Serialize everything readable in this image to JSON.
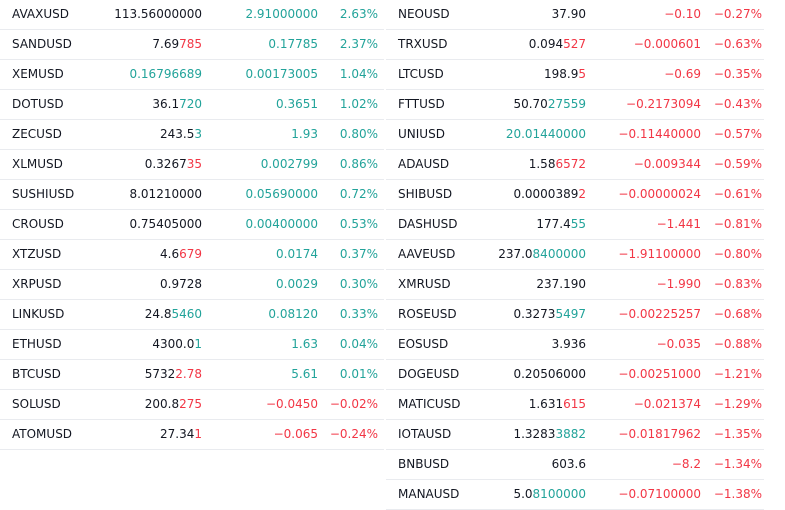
{
  "colors": {
    "up": "#22a39a",
    "down": "#f23645",
    "text": "#131722",
    "divider": "#e9ebef"
  },
  "left_rows": [
    {
      "symbol": "AVAXUSD",
      "price": "113.56000000",
      "price_base": "113.56000000",
      "price_tail": "",
      "price_dir": "neutral",
      "tail_dir": "",
      "change": "2.91000000",
      "pct": "2.63%",
      "dir": "up"
    },
    {
      "symbol": "SANDUSD",
      "price": "7.69785",
      "price_base": "7.69",
      "price_tail": "785",
      "price_dir": "neutral",
      "tail_dir": "down",
      "change": "0.17785",
      "pct": "2.37%",
      "dir": "up"
    },
    {
      "symbol": "XEMUSD",
      "price": "0.16796689",
      "price_base": "0.16796689",
      "price_tail": "",
      "price_dir": "up",
      "tail_dir": "",
      "change": "0.00173005",
      "pct": "1.04%",
      "dir": "up"
    },
    {
      "symbol": "DOTUSD",
      "price": "36.1720",
      "price_base": "36.1",
      "price_tail": "720",
      "price_dir": "neutral",
      "tail_dir": "up",
      "change": "0.3651",
      "pct": "1.02%",
      "dir": "up"
    },
    {
      "symbol": "ZECUSD",
      "price": "243.53",
      "price_base": "243.5",
      "price_tail": "3",
      "price_dir": "neutral",
      "tail_dir": "up",
      "change": "1.93",
      "pct": "0.80%",
      "dir": "up"
    },
    {
      "symbol": "XLMUSD",
      "price": "0.326735",
      "price_base": "0.3267",
      "price_tail": "35",
      "price_dir": "neutral",
      "tail_dir": "down",
      "change": "0.002799",
      "pct": "0.86%",
      "dir": "up"
    },
    {
      "symbol": "SUSHIUSD",
      "price": "8.01210000",
      "price_base": "8.01210000",
      "price_tail": "",
      "price_dir": "neutral",
      "tail_dir": "",
      "change": "0.05690000",
      "pct": "0.72%",
      "dir": "up"
    },
    {
      "symbol": "CROUSD",
      "price": "0.75405000",
      "price_base": "0.75405000",
      "price_tail": "",
      "price_dir": "neutral",
      "tail_dir": "",
      "change": "0.00400000",
      "pct": "0.53%",
      "dir": "up"
    },
    {
      "symbol": "XTZUSD",
      "price": "4.6679",
      "price_base": "4.6",
      "price_tail": "679",
      "price_dir": "neutral",
      "tail_dir": "down",
      "change": "0.0174",
      "pct": "0.37%",
      "dir": "up"
    },
    {
      "symbol": "XRPUSD",
      "price": "0.9728",
      "price_base": "0.9728",
      "price_tail": "",
      "price_dir": "neutral",
      "tail_dir": "",
      "change": "0.0029",
      "pct": "0.30%",
      "dir": "up"
    },
    {
      "symbol": "LINKUSD",
      "price": "24.85460",
      "price_base": "24.8",
      "price_tail": "5460",
      "price_dir": "neutral",
      "tail_dir": "up",
      "change": "0.08120",
      "pct": "0.33%",
      "dir": "up"
    },
    {
      "symbol": "ETHUSD",
      "price": "4300.01",
      "price_base": "4300.0",
      "price_tail": "1",
      "price_dir": "neutral",
      "tail_dir": "up",
      "change": "1.63",
      "pct": "0.04%",
      "dir": "up"
    },
    {
      "symbol": "BTCUSD",
      "price": "57322.78",
      "price_base": "5732",
      "price_tail": "2.78",
      "price_dir": "neutral",
      "tail_dir": "down",
      "change": "5.61",
      "pct": "0.01%",
      "dir": "up"
    },
    {
      "symbol": "SOLUSD",
      "price": "200.8275",
      "price_base": "200.8",
      "price_tail": "275",
      "price_dir": "neutral",
      "tail_dir": "down",
      "change": "−0.0450",
      "pct": "−0.02%",
      "dir": "down"
    },
    {
      "symbol": "ATOMUSD",
      "price": "27.341",
      "price_base": "27.34",
      "price_tail": "1",
      "price_dir": "neutral",
      "tail_dir": "down",
      "change": "−0.065",
      "pct": "−0.24%",
      "dir": "down"
    }
  ],
  "right_rows": [
    {
      "symbol": "NEOUSD",
      "price": "37.90",
      "price_base": "37.90",
      "price_tail": "",
      "price_dir": "neutral",
      "tail_dir": "",
      "change": "−0.10",
      "pct": "−0.27%",
      "dir": "down"
    },
    {
      "symbol": "TRXUSD",
      "price": "0.094527",
      "price_base": "0.094",
      "price_tail": "527",
      "price_dir": "neutral",
      "tail_dir": "down",
      "change": "−0.000601",
      "pct": "−0.63%",
      "dir": "down"
    },
    {
      "symbol": "LTCUSD",
      "price": "198.95",
      "price_base": "198.9",
      "price_tail": "5",
      "price_dir": "neutral",
      "tail_dir": "down",
      "change": "−0.69",
      "pct": "−0.35%",
      "dir": "down"
    },
    {
      "symbol": "FTTUSD",
      "price": "50.7027559",
      "price_base": "50.70",
      "price_tail": "27559",
      "price_dir": "neutral",
      "tail_dir": "up",
      "change": "−0.2173094",
      "pct": "−0.43%",
      "dir": "down"
    },
    {
      "symbol": "UNIUSD",
      "price": "20.01440000",
      "price_base": "20.01440000",
      "price_tail": "",
      "price_dir": "up",
      "tail_dir": "",
      "change": "−0.11440000",
      "pct": "−0.57%",
      "dir": "down"
    },
    {
      "symbol": "ADAUSD",
      "price": "1.586572",
      "price_base": "1.58",
      "price_tail": "6572",
      "price_dir": "neutral",
      "tail_dir": "down",
      "change": "−0.009344",
      "pct": "−0.59%",
      "dir": "down"
    },
    {
      "symbol": "SHIBUSD",
      "price": "0.00003892",
      "price_base": "0.0000389",
      "price_tail": "2",
      "price_dir": "neutral",
      "tail_dir": "down",
      "change": "−0.00000024",
      "pct": "−0.61%",
      "dir": "down"
    },
    {
      "symbol": "DASHUSD",
      "price": "177.455",
      "price_base": "177.4",
      "price_tail": "55",
      "price_dir": "neutral",
      "tail_dir": "up",
      "change": "−1.441",
      "pct": "−0.81%",
      "dir": "down"
    },
    {
      "symbol": "AAVEUSD",
      "price": "237.08400000",
      "price_base": "237.0",
      "price_tail": "8400000",
      "price_dir": "neutral",
      "tail_dir": "up",
      "change": "−1.91100000",
      "pct": "−0.80%",
      "dir": "down"
    },
    {
      "symbol": "XMRUSD",
      "price": "237.190",
      "price_base": "237.190",
      "price_tail": "",
      "price_dir": "neutral",
      "tail_dir": "",
      "change": "−1.990",
      "pct": "−0.83%",
      "dir": "down"
    },
    {
      "symbol": "ROSEUSD",
      "price": "0.32735497",
      "price_base": "0.3273",
      "price_tail": "5497",
      "price_dir": "neutral",
      "tail_dir": "up",
      "change": "−0.00225257",
      "pct": "−0.68%",
      "dir": "down"
    },
    {
      "symbol": "EOSUSD",
      "price": "3.936",
      "price_base": "3.936",
      "price_tail": "",
      "price_dir": "neutral",
      "tail_dir": "",
      "change": "−0.035",
      "pct": "−0.88%",
      "dir": "down"
    },
    {
      "symbol": "DOGEUSD",
      "price": "0.20506000",
      "price_base": "0.20506000",
      "price_tail": "",
      "price_dir": "neutral",
      "tail_dir": "",
      "change": "−0.00251000",
      "pct": "−1.21%",
      "dir": "down"
    },
    {
      "symbol": "MATICUSD",
      "price": "1.631615",
      "price_base": "1.631",
      "price_tail": "615",
      "price_dir": "neutral",
      "tail_dir": "down",
      "change": "−0.021374",
      "pct": "−1.29%",
      "dir": "down"
    },
    {
      "symbol": "IOTAUSD",
      "price": "1.32833882",
      "price_base": "1.3283",
      "price_tail": "3882",
      "price_dir": "neutral",
      "tail_dir": "up",
      "change": "−0.01817962",
      "pct": "−1.35%",
      "dir": "down"
    },
    {
      "symbol": "BNBUSD",
      "price": "603.6",
      "price_base": "603.6",
      "price_tail": "",
      "price_dir": "neutral",
      "tail_dir": "",
      "change": "−8.2",
      "pct": "−1.34%",
      "dir": "down"
    },
    {
      "symbol": "MANAUSD",
      "price": "5.08100000",
      "price_base": "5.0",
      "price_tail": "8100000",
      "price_dir": "neutral",
      "tail_dir": "up",
      "change": "−0.07100000",
      "pct": "−1.38%",
      "dir": "down"
    }
  ]
}
